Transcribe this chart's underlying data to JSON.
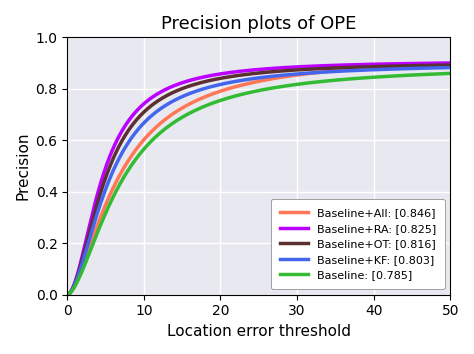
{
  "title": "Precision plots of OPE",
  "xlabel": "Location error threshold",
  "ylabel": "Precision",
  "xlim": [
    0,
    50
  ],
  "ylim": [
    0,
    1.0
  ],
  "xticks": [
    0,
    10,
    20,
    30,
    40,
    50
  ],
  "yticks": [
    0.0,
    0.2,
    0.4,
    0.6,
    0.8,
    1.0
  ],
  "series": [
    {
      "label": "Baseline+All: [0.846]",
      "color": "#FF7755",
      "A": 0.935,
      "alpha": 1.6,
      "c": 22.0
    },
    {
      "label": "Baseline+RA: [0.825]",
      "color": "#BB00FF",
      "A": 0.91,
      "alpha": 1.9,
      "c": 18.0
    },
    {
      "label": "Baseline+OT: [0.816]",
      "color": "#5C3030",
      "A": 0.905,
      "alpha": 1.85,
      "c": 19.5
    },
    {
      "label": "Baseline+KF: [0.803]",
      "color": "#4466EE",
      "A": 0.9,
      "alpha": 1.78,
      "c": 21.0
    },
    {
      "label": "Baseline: [0.785]",
      "color": "#33BB33",
      "A": 0.895,
      "alpha": 1.65,
      "c": 26.0
    }
  ],
  "linewidth": 2.5,
  "background_color": "#E8E8F0",
  "grid_color": "white",
  "legend_loc": "lower right",
  "title_fontsize": 13,
  "label_fontsize": 11
}
